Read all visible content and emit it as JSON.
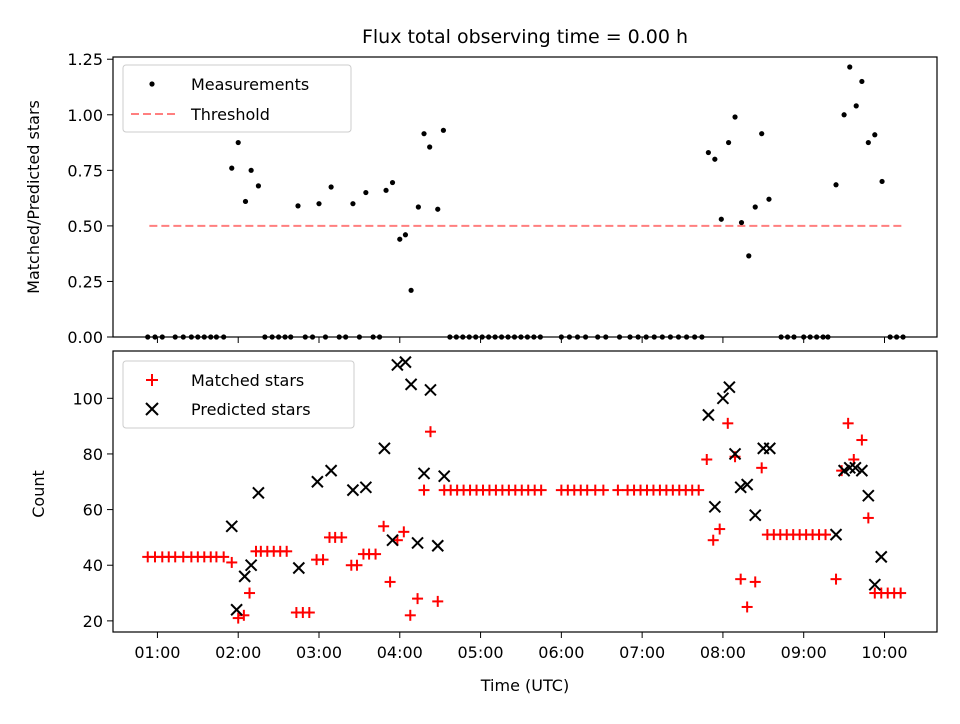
{
  "chart_data": [
    {
      "type": "scatter",
      "title": "Flux total observing time = 0.00 h",
      "xlabel": "",
      "ylabel": "Matched/Predicted stars",
      "xlim_hours": [
        0.45,
        10.65
      ],
      "ylim": [
        0,
        1.26
      ],
      "yticks": [
        "0.00",
        "0.25",
        "0.50",
        "0.75",
        "1.00",
        "1.25"
      ],
      "legend": {
        "position": "top-left",
        "entries": [
          "Measurements",
          "Threshold"
        ]
      },
      "threshold": {
        "name": "Threshold",
        "value": 0.5,
        "x_range": [
          0.9,
          10.25
        ],
        "color": "#ff7f7f"
      },
      "series": [
        {
          "name": "Measurements",
          "marker": "dot",
          "color": "#000000",
          "points": [
            [
              0.88,
              0
            ],
            [
              0.97,
              0
            ],
            [
              1.06,
              0
            ],
            [
              1.22,
              0
            ],
            [
              1.32,
              0
            ],
            [
              1.42,
              0
            ],
            [
              1.5,
              0
            ],
            [
              1.58,
              0
            ],
            [
              1.66,
              0
            ],
            [
              1.73,
              0
            ],
            [
              1.82,
              0
            ],
            [
              1.92,
              0.76
            ],
            [
              2.0,
              0.875
            ],
            [
              2.09,
              0.61
            ],
            [
              2.16,
              0.75
            ],
            [
              2.25,
              0.68
            ],
            [
              2.33,
              0
            ],
            [
              2.42,
              0
            ],
            [
              2.5,
              0
            ],
            [
              2.58,
              0
            ],
            [
              2.65,
              0
            ],
            [
              2.74,
              0.59
            ],
            [
              2.83,
              0
            ],
            [
              2.92,
              0
            ],
            [
              3.0,
              0.6
            ],
            [
              3.08,
              0
            ],
            [
              3.15,
              0.675
            ],
            [
              3.25,
              0
            ],
            [
              3.33,
              0
            ],
            [
              3.42,
              0.6
            ],
            [
              3.5,
              0
            ],
            [
              3.58,
              0.65
            ],
            [
              3.67,
              0
            ],
            [
              3.75,
              0
            ],
            [
              3.83,
              0.66
            ],
            [
              3.91,
              0.695
            ],
            [
              4.0,
              0.44
            ],
            [
              4.07,
              0.46
            ],
            [
              4.14,
              0.21
            ],
            [
              4.23,
              0.585
            ],
            [
              4.3,
              0.915
            ],
            [
              4.37,
              0.855
            ],
            [
              4.47,
              0.575
            ],
            [
              4.54,
              0.93
            ],
            [
              4.62,
              0
            ],
            [
              4.7,
              0
            ],
            [
              4.78,
              0
            ],
            [
              4.86,
              0
            ],
            [
              4.94,
              0
            ],
            [
              5.02,
              0
            ],
            [
              5.1,
              0
            ],
            [
              5.18,
              0
            ],
            [
              5.26,
              0
            ],
            [
              5.34,
              0
            ],
            [
              5.42,
              0
            ],
            [
              5.5,
              0
            ],
            [
              5.58,
              0
            ],
            [
              5.66,
              0
            ],
            [
              5.74,
              0
            ],
            [
              6.0,
              0
            ],
            [
              6.1,
              0
            ],
            [
              6.2,
              0
            ],
            [
              6.3,
              0
            ],
            [
              6.45,
              0
            ],
            [
              6.55,
              0
            ],
            [
              6.72,
              0
            ],
            [
              6.85,
              0
            ],
            [
              6.95,
              0
            ],
            [
              7.05,
              0
            ],
            [
              7.15,
              0
            ],
            [
              7.25,
              0
            ],
            [
              7.35,
              0
            ],
            [
              7.45,
              0
            ],
            [
              7.55,
              0
            ],
            [
              7.65,
              0
            ],
            [
              7.74,
              0
            ],
            [
              7.82,
              0.83
            ],
            [
              7.9,
              0.8
            ],
            [
              7.98,
              0.53
            ],
            [
              8.07,
              0.875
            ],
            [
              8.15,
              0.99
            ],
            [
              8.23,
              0.515
            ],
            [
              8.32,
              0.365
            ],
            [
              8.4,
              0.585
            ],
            [
              8.48,
              0.915
            ],
            [
              8.57,
              0.62
            ],
            [
              8.72,
              0
            ],
            [
              8.8,
              0
            ],
            [
              8.88,
              0
            ],
            [
              9.0,
              0
            ],
            [
              9.08,
              0
            ],
            [
              9.16,
              0
            ],
            [
              9.24,
              0
            ],
            [
              9.3,
              0
            ],
            [
              9.4,
              0.685
            ],
            [
              9.5,
              1.0
            ],
            [
              9.57,
              1.215
            ],
            [
              9.65,
              1.04
            ],
            [
              9.72,
              1.15
            ],
            [
              9.8,
              0.875
            ],
            [
              9.88,
              0.91
            ],
            [
              9.97,
              0.7
            ],
            [
              10.07,
              0
            ],
            [
              10.15,
              0
            ],
            [
              10.23,
              0
            ]
          ]
        }
      ]
    },
    {
      "type": "scatter",
      "title": "",
      "xlabel": "Time (UTC)",
      "ylabel": "Count",
      "xlim_hours": [
        0.45,
        10.65
      ],
      "ylim": [
        16,
        117
      ],
      "yticks": [
        "20",
        "40",
        "60",
        "80",
        "100"
      ],
      "xticks": [
        "01:00",
        "02:00",
        "03:00",
        "04:00",
        "05:00",
        "06:00",
        "07:00",
        "08:00",
        "09:00",
        "10:00"
      ],
      "legend": {
        "position": "top-left",
        "entries": [
          "Matched stars",
          "Predicted stars"
        ]
      },
      "series": [
        {
          "name": "Matched stars",
          "marker": "plus",
          "color": "#ff0000",
          "points": [
            [
              0.88,
              43
            ],
            [
              0.97,
              43
            ],
            [
              1.06,
              43
            ],
            [
              1.14,
              43
            ],
            [
              1.22,
              43
            ],
            [
              1.32,
              43
            ],
            [
              1.42,
              43
            ],
            [
              1.5,
              43
            ],
            [
              1.58,
              43
            ],
            [
              1.66,
              43
            ],
            [
              1.73,
              43
            ],
            [
              1.82,
              43
            ],
            [
              1.92,
              41
            ],
            [
              2.0,
              21
            ],
            [
              2.07,
              22
            ],
            [
              2.14,
              30
            ],
            [
              2.22,
              45
            ],
            [
              2.28,
              45
            ],
            [
              2.36,
              45
            ],
            [
              2.44,
              45
            ],
            [
              2.52,
              45
            ],
            [
              2.6,
              45
            ],
            [
              2.72,
              23
            ],
            [
              2.8,
              23
            ],
            [
              2.88,
              23
            ],
            [
              2.97,
              42
            ],
            [
              3.05,
              42
            ],
            [
              3.13,
              50
            ],
            [
              3.2,
              50
            ],
            [
              3.28,
              50
            ],
            [
              3.4,
              40
            ],
            [
              3.47,
              40
            ],
            [
              3.55,
              44
            ],
            [
              3.62,
              44
            ],
            [
              3.7,
              44
            ],
            [
              3.8,
              54
            ],
            [
              3.88,
              34
            ],
            [
              3.97,
              49
            ],
            [
              4.05,
              52
            ],
            [
              4.13,
              22
            ],
            [
              4.22,
              28
            ],
            [
              4.3,
              67
            ],
            [
              4.38,
              88
            ],
            [
              4.47,
              27
            ],
            [
              4.55,
              67
            ],
            [
              4.63,
              67
            ],
            [
              4.71,
              67
            ],
            [
              4.79,
              67
            ],
            [
              4.87,
              67
            ],
            [
              4.95,
              67
            ],
            [
              5.03,
              67
            ],
            [
              5.11,
              67
            ],
            [
              5.19,
              67
            ],
            [
              5.27,
              67
            ],
            [
              5.35,
              67
            ],
            [
              5.43,
              67
            ],
            [
              5.51,
              67
            ],
            [
              5.59,
              67
            ],
            [
              5.67,
              67
            ],
            [
              5.75,
              67
            ],
            [
              6.0,
              67
            ],
            [
              6.08,
              67
            ],
            [
              6.16,
              67
            ],
            [
              6.24,
              67
            ],
            [
              6.32,
              67
            ],
            [
              6.42,
              67
            ],
            [
              6.52,
              67
            ],
            [
              6.7,
              67
            ],
            [
              6.82,
              67
            ],
            [
              6.9,
              67
            ],
            [
              6.98,
              67
            ],
            [
              7.06,
              67
            ],
            [
              7.14,
              67
            ],
            [
              7.22,
              67
            ],
            [
              7.3,
              67
            ],
            [
              7.38,
              67
            ],
            [
              7.46,
              67
            ],
            [
              7.54,
              67
            ],
            [
              7.62,
              67
            ],
            [
              7.7,
              67
            ],
            [
              7.8,
              78
            ],
            [
              7.88,
              49
            ],
            [
              7.96,
              53
            ],
            [
              8.06,
              91
            ],
            [
              8.15,
              79
            ],
            [
              8.22,
              35
            ],
            [
              8.3,
              25
            ],
            [
              8.4,
              34
            ],
            [
              8.48,
              75
            ],
            [
              8.55,
              51
            ],
            [
              8.63,
              51
            ],
            [
              8.71,
              51
            ],
            [
              8.79,
              51
            ],
            [
              8.87,
              51
            ],
            [
              8.95,
              51
            ],
            [
              9.03,
              51
            ],
            [
              9.11,
              51
            ],
            [
              9.19,
              51
            ],
            [
              9.27,
              51
            ],
            [
              9.4,
              35
            ],
            [
              9.47,
              74
            ],
            [
              9.55,
              91
            ],
            [
              9.62,
              78
            ],
            [
              9.72,
              85
            ],
            [
              9.8,
              57
            ],
            [
              9.88,
              30
            ],
            [
              9.96,
              30
            ],
            [
              10.04,
              30
            ],
            [
              10.12,
              30
            ],
            [
              10.2,
              30
            ]
          ]
        },
        {
          "name": "Predicted stars",
          "marker": "x",
          "color": "#000000",
          "points": [
            [
              1.92,
              54
            ],
            [
              1.98,
              24
            ],
            [
              2.08,
              36
            ],
            [
              2.16,
              40
            ],
            [
              2.25,
              66
            ],
            [
              2.75,
              39
            ],
            [
              2.98,
              70
            ],
            [
              3.15,
              74
            ],
            [
              3.42,
              67
            ],
            [
              3.58,
              68
            ],
            [
              3.81,
              82
            ],
            [
              3.91,
              49
            ],
            [
              3.97,
              112
            ],
            [
              4.07,
              113
            ],
            [
              4.14,
              105
            ],
            [
              4.22,
              48
            ],
            [
              4.3,
              73
            ],
            [
              4.38,
              103
            ],
            [
              4.47,
              47
            ],
            [
              4.55,
              72
            ],
            [
              7.82,
              94
            ],
            [
              7.9,
              61
            ],
            [
              8.0,
              100
            ],
            [
              8.08,
              104
            ],
            [
              8.15,
              80
            ],
            [
              8.22,
              68
            ],
            [
              8.3,
              69
            ],
            [
              8.4,
              58
            ],
            [
              8.5,
              82
            ],
            [
              8.58,
              82
            ],
            [
              9.4,
              51
            ],
            [
              9.5,
              74
            ],
            [
              9.57,
              75
            ],
            [
              9.64,
              75
            ],
            [
              9.72,
              74
            ],
            [
              9.8,
              65
            ],
            [
              9.88,
              33
            ],
            [
              9.96,
              43
            ]
          ]
        }
      ]
    }
  ]
}
